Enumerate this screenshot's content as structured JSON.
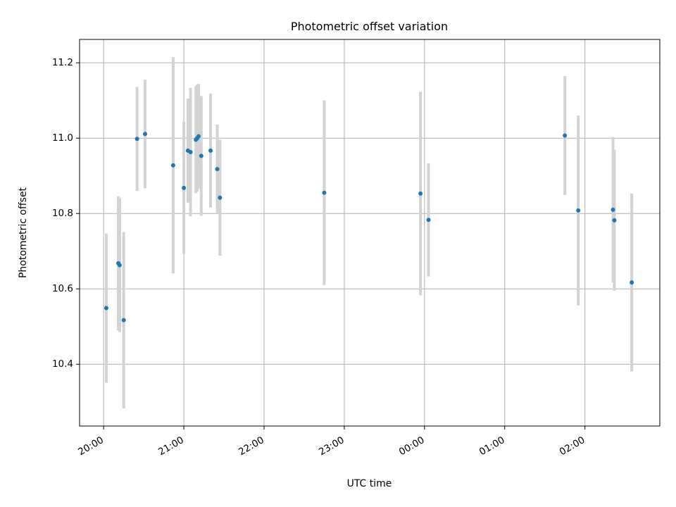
{
  "chart_data": {
    "type": "scatter",
    "title": "Photometric offset variation",
    "xlabel": "UTC time",
    "ylabel": "Photometric offset",
    "x_ticks": [
      "20:00",
      "21:00",
      "22:00",
      "23:00",
      "00:00",
      "01:00",
      "02:00"
    ],
    "y_ticks": [
      "10.4",
      "10.6",
      "10.8",
      "11.0",
      "11.2"
    ],
    "y_tick_values": [
      10.4,
      10.6,
      10.8,
      11.0,
      11.2
    ],
    "xlim": [
      "19:42",
      "02:56"
    ],
    "ylim": [
      10.236,
      11.262
    ],
    "grid": true,
    "colors": {
      "point": "#1f77b4",
      "errorbar": "#d3d3d3",
      "grid": "#b0b0b0"
    },
    "points": [
      {
        "t": "20:02",
        "y": 10.549,
        "err": 0.198
      },
      {
        "t": "20:11",
        "y": 10.668,
        "err": 0.178
      },
      {
        "t": "20:12",
        "y": 10.663,
        "err": 0.178
      },
      {
        "t": "20:15",
        "y": 10.517,
        "err": 0.234
      },
      {
        "t": "20:25",
        "y": 10.998,
        "err": 0.138
      },
      {
        "t": "20:31",
        "y": 11.011,
        "err": 0.144
      },
      {
        "t": "20:52",
        "y": 10.928,
        "err": 0.287
      },
      {
        "t": "21:00",
        "y": 10.868,
        "err": 0.175
      },
      {
        "t": "21:03",
        "y": 10.967,
        "err": 0.138
      },
      {
        "t": "21:05",
        "y": 10.963,
        "err": 0.17
      },
      {
        "t": "21:09",
        "y": 10.996,
        "err": 0.142
      },
      {
        "t": "21:10",
        "y": 11.0,
        "err": 0.142
      },
      {
        "t": "21:11",
        "y": 11.005,
        "err": 0.139
      },
      {
        "t": "21:13",
        "y": 10.953,
        "err": 0.159
      },
      {
        "t": "21:20",
        "y": 10.967,
        "err": 0.151
      },
      {
        "t": "21:25",
        "y": 10.918,
        "err": 0.118
      },
      {
        "t": "21:27",
        "y": 10.842,
        "err": 0.154
      },
      {
        "t": "22:45",
        "y": 10.855,
        "err": 0.245
      },
      {
        "t": "23:57",
        "y": 10.853,
        "err": 0.27
      },
      {
        "t": "00:03",
        "y": 10.783,
        "err": 0.15
      },
      {
        "t": "01:45",
        "y": 11.007,
        "err": 0.158
      },
      {
        "t": "01:55",
        "y": 10.808,
        "err": 0.252
      },
      {
        "t": "02:21",
        "y": 10.81,
        "err": 0.193
      },
      {
        "t": "02:22",
        "y": 10.782,
        "err": 0.187
      },
      {
        "t": "02:35",
        "y": 10.617,
        "err": 0.236
      }
    ]
  }
}
